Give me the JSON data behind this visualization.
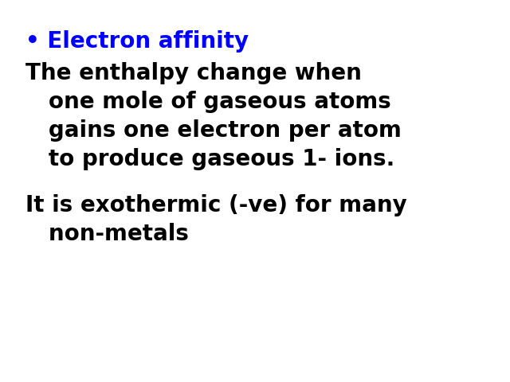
{
  "background_color": "#ffffff",
  "bullet_text": "Electron affinity",
  "bullet_color": "#0000ff",
  "bullet_fontsize": 20,
  "para1_lines": [
    "The enthalpy change when",
    "   one mole of gaseous atoms",
    "   gains one electron per atom",
    "   to produce gaseous 1- ions."
  ],
  "para1_fontsize": 20,
  "para1_color": "#000000",
  "para2_lines": [
    "It is exothermic (-ve) for many",
    "   non-metals"
  ],
  "para2_fontsize": 20,
  "para2_color": "#000000",
  "bullet_symbol": "•",
  "fig_width": 6.4,
  "fig_height": 4.8,
  "dpi": 100
}
